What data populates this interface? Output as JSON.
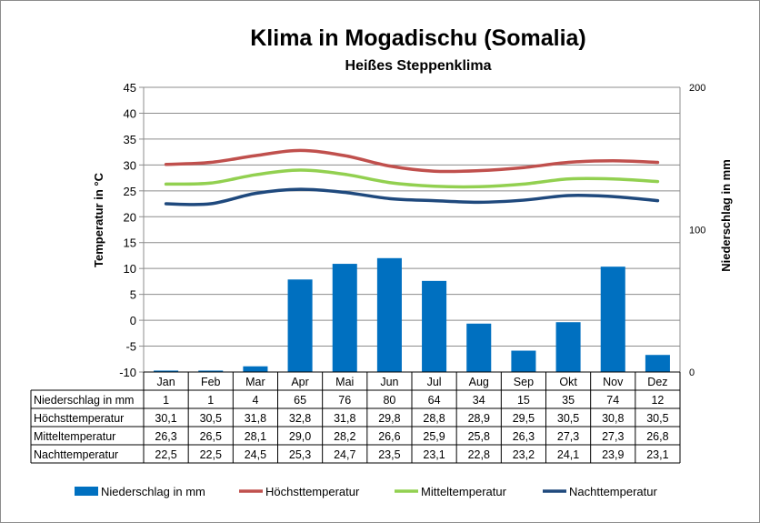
{
  "chart_data": {
    "type": "bar+line",
    "title": "Klima in Mogadischu (Somalia)",
    "subtitle": "Heißes Steppenklima",
    "ylabel_left": "Temperatur in °C",
    "ylabel_right": "Niederschlag in mm",
    "ylim_left": [
      -10,
      45
    ],
    "yticks_left": [
      "45",
      "40",
      "35",
      "30",
      "25",
      "20",
      "15",
      "10",
      "5",
      "0",
      "-5",
      "-10"
    ],
    "ylim_right": [
      0,
      200
    ],
    "yticks_right": [
      "200",
      "100",
      "0"
    ],
    "grid": true,
    "legend_position": "bottom",
    "categories": [
      "Jan",
      "Feb",
      "Mar",
      "Apr",
      "Mai",
      "Jun",
      "Jul",
      "Aug",
      "Sep",
      "Okt",
      "Nov",
      "Dez"
    ],
    "series": [
      {
        "name": "Niederschlag in mm",
        "type": "bar",
        "axis": "right",
        "color": "#0070c0",
        "values": [
          1,
          1,
          4,
          65,
          76,
          80,
          64,
          34,
          15,
          35,
          74,
          12
        ],
        "labels": [
          "1",
          "1",
          "4",
          "65",
          "76",
          "80",
          "64",
          "34",
          "15",
          "35",
          "74",
          "12"
        ]
      },
      {
        "name": "Höchsttemperatur",
        "type": "line",
        "axis": "left",
        "color": "#c0504d",
        "values": [
          30.1,
          30.5,
          31.8,
          32.8,
          31.8,
          29.8,
          28.8,
          28.9,
          29.5,
          30.5,
          30.8,
          30.5
        ],
        "labels": [
          "30,1",
          "30,5",
          "31,8",
          "32,8",
          "31,8",
          "29,8",
          "28,8",
          "28,9",
          "29,5",
          "30,5",
          "30,8",
          "30,5"
        ]
      },
      {
        "name": "Mitteltemperatur",
        "type": "line",
        "axis": "left",
        "color": "#92d050",
        "values": [
          26.3,
          26.5,
          28.1,
          29.0,
          28.2,
          26.6,
          25.9,
          25.8,
          26.3,
          27.3,
          27.3,
          26.8
        ],
        "labels": [
          "26,3",
          "26,5",
          "28,1",
          "29,0",
          "28,2",
          "26,6",
          "25,9",
          "25,8",
          "26,3",
          "27,3",
          "27,3",
          "26,8"
        ]
      },
      {
        "name": "Nachttemperatur",
        "type": "line",
        "axis": "left",
        "color": "#1f497d",
        "values": [
          22.5,
          22.5,
          24.5,
          25.3,
          24.7,
          23.5,
          23.1,
          22.8,
          23.2,
          24.1,
          23.9,
          23.1
        ],
        "labels": [
          "22,5",
          "22,5",
          "24,5",
          "25,3",
          "24,7",
          "23,5",
          "23,1",
          "22,8",
          "23,2",
          "24,1",
          "23,9",
          "23,1"
        ]
      }
    ]
  }
}
